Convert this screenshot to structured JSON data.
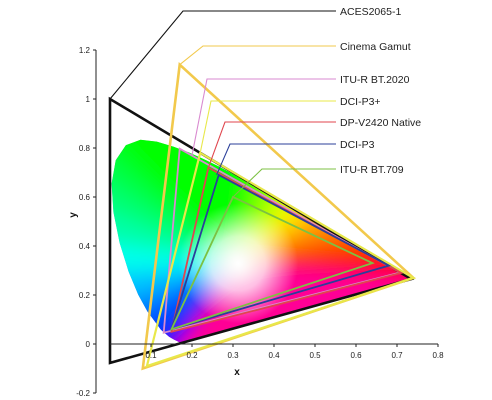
{
  "chart_data": {
    "type": "scatter",
    "title": "",
    "xlabel": "x",
    "ylabel": "y",
    "xlim": [
      0,
      0.8
    ],
    "ylim": [
      -0.2,
      1.2
    ],
    "x_ticks": [
      "0",
      "0.1",
      "0.2",
      "0.3",
      "0.4",
      "0.5",
      "0.6",
      "0.7",
      "0.8"
    ],
    "y_ticks": [
      "-0.2",
      "0",
      "0.2",
      "0.4",
      "0.6",
      "0.8",
      "1",
      "1.2"
    ],
    "grid": false,
    "legend_position": "right",
    "spectral_locus": [
      [
        0.1741,
        0.005
      ],
      [
        0.1714,
        0.0051
      ],
      [
        0.1689,
        0.0069
      ],
      [
        0.1644,
        0.0109
      ],
      [
        0.1566,
        0.0177
      ],
      [
        0.144,
        0.0297
      ],
      [
        0.1241,
        0.0578
      ],
      [
        0.0913,
        0.1327
      ],
      [
        0.0687,
        0.2007
      ],
      [
        0.0454,
        0.295
      ],
      [
        0.0235,
        0.4127
      ],
      [
        0.0082,
        0.5384
      ],
      [
        0.0039,
        0.6548
      ],
      [
        0.0139,
        0.7502
      ],
      [
        0.0389,
        0.812
      ],
      [
        0.0743,
        0.8338
      ],
      [
        0.1142,
        0.8262
      ],
      [
        0.1547,
        0.8059
      ],
      [
        0.1929,
        0.7816
      ],
      [
        0.2296,
        0.7543
      ],
      [
        0.2658,
        0.7243
      ],
      [
        0.3016,
        0.6923
      ],
      [
        0.3373,
        0.6589
      ],
      [
        0.3731,
        0.6245
      ],
      [
        0.4087,
        0.5896
      ],
      [
        0.4441,
        0.5547
      ],
      [
        0.4788,
        0.5202
      ],
      [
        0.5125,
        0.4866
      ],
      [
        0.5448,
        0.4544
      ],
      [
        0.5752,
        0.4242
      ],
      [
        0.6029,
        0.3965
      ],
      [
        0.627,
        0.3725
      ],
      [
        0.6482,
        0.3514
      ],
      [
        0.6658,
        0.334
      ],
      [
        0.6801,
        0.3197
      ],
      [
        0.6915,
        0.3083
      ],
      [
        0.7006,
        0.2993
      ],
      [
        0.7079,
        0.292
      ],
      [
        0.714,
        0.2859
      ],
      [
        0.719,
        0.2809
      ],
      [
        0.723,
        0.277
      ],
      [
        0.726,
        0.274
      ],
      [
        0.7347,
        0.2653
      ]
    ],
    "white_point": [
      0.3127,
      0.329
    ],
    "series": [
      {
        "name": "ACES2065-1",
        "color": "#111111",
        "points": [
          [
            0.7347,
            0.2653
          ],
          [
            0.0,
            1.0
          ],
          [
            0.0001,
            -0.077
          ]
        ]
      },
      {
        "name": "Cinema Gamut",
        "color": "#f2c94c",
        "points": [
          [
            0.74,
            0.27
          ],
          [
            0.17,
            1.14
          ],
          [
            0.08,
            -0.1
          ]
        ]
      },
      {
        "name": "ITU-R BT.2020",
        "color": "#d98ad0",
        "points": [
          [
            0.708,
            0.292
          ],
          [
            0.17,
            0.797
          ],
          [
            0.131,
            0.046
          ]
        ]
      },
      {
        "name": "DCI-P3+",
        "color": "#e8e84a",
        "points": [
          [
            0.74,
            0.27
          ],
          [
            0.22,
            0.78
          ],
          [
            0.09,
            -0.09
          ]
        ]
      },
      {
        "name": "DP-V2420 Native",
        "color": "#e0464e",
        "points": [
          [
            0.71,
            0.29
          ],
          [
            0.24,
            0.72
          ],
          [
            0.15,
            0.05
          ]
        ]
      },
      {
        "name": "DCI-P3",
        "color": "#2b3f9a",
        "points": [
          [
            0.68,
            0.32
          ],
          [
            0.265,
            0.69
          ],
          [
            0.15,
            0.06
          ]
        ]
      },
      {
        "name": "ITU-R BT.709",
        "color": "#7cc143",
        "points": [
          [
            0.64,
            0.33
          ],
          [
            0.3,
            0.6
          ],
          [
            0.15,
            0.06
          ]
        ]
      }
    ]
  }
}
